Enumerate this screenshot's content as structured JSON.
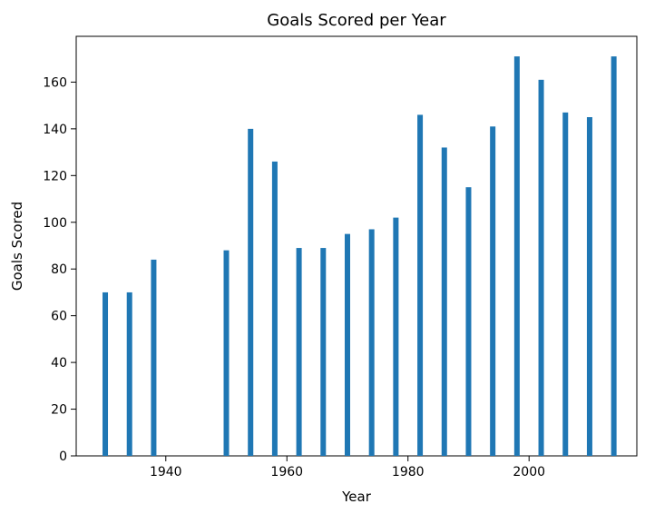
{
  "chart_data": {
    "type": "bar",
    "title": "Goals Scored per Year",
    "xlabel": "Year",
    "ylabel": "Goals Scored",
    "x": [
      1930,
      1934,
      1938,
      1950,
      1954,
      1958,
      1962,
      1966,
      1970,
      1974,
      1978,
      1982,
      1986,
      1990,
      1994,
      1998,
      2002,
      2006,
      2010,
      2014
    ],
    "values": [
      70,
      70,
      84,
      88,
      140,
      126,
      89,
      89,
      95,
      97,
      102,
      146,
      132,
      115,
      141,
      171,
      161,
      147,
      145,
      171
    ],
    "xlim": [
      1925.2,
      2017.8
    ],
    "ylim": [
      0,
      179.6
    ],
    "xticks": [
      1940,
      1960,
      1980,
      2000
    ],
    "xtick_labels": [
      "1940",
      "1960",
      "1980",
      "2000"
    ],
    "yticks": [
      0,
      20,
      40,
      60,
      80,
      100,
      120,
      140,
      160
    ],
    "ytick_labels": [
      "0",
      "20",
      "40",
      "60",
      "80",
      "100",
      "120",
      "140",
      "160"
    ],
    "bar_color": "#1f77b4",
    "grid": false,
    "legend": "none"
  }
}
